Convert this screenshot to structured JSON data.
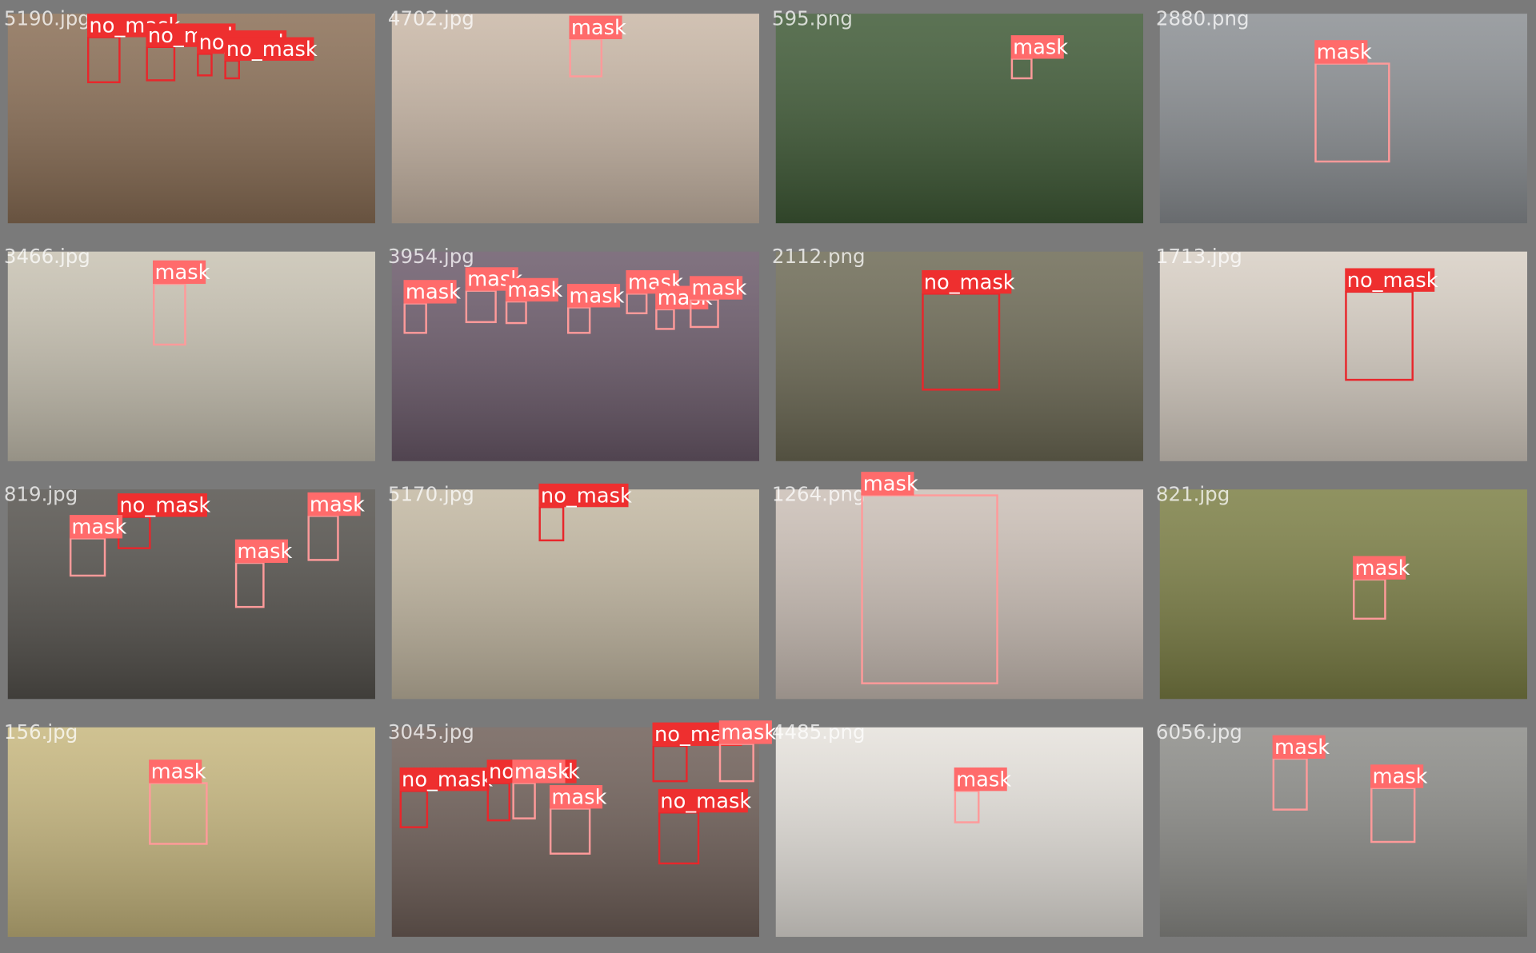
{
  "tiles": [
    {
      "file": "5190.jpg",
      "labels": [
        "no_mask",
        "no_mask",
        "no_mask",
        "no_mask"
      ]
    },
    {
      "file": "4702.jpg",
      "labels": [
        "mask"
      ]
    },
    {
      "file": "595.png",
      "labels": [
        "mask"
      ]
    },
    {
      "file": "2880.png",
      "labels": [
        "mask"
      ]
    },
    {
      "file": "3466.jpg",
      "labels": [
        "mask"
      ]
    },
    {
      "file": "3954.jpg",
      "labels": [
        "mask",
        "mask",
        "mask",
        "mask",
        "mask",
        "mask",
        "mask"
      ]
    },
    {
      "file": "2112.png",
      "labels": [
        "no_mask"
      ]
    },
    {
      "file": "1713.jpg",
      "labels": [
        "no_mask"
      ]
    },
    {
      "file": "819.jpg",
      "labels": [
        "no_mask",
        "mask",
        "mask",
        "mask"
      ]
    },
    {
      "file": "5170.jpg",
      "labels": [
        "no_mask"
      ]
    },
    {
      "file": "1264.png",
      "labels": [
        "mask"
      ]
    },
    {
      "file": "821.jpg",
      "labels": [
        "mask"
      ]
    },
    {
      "file": "156.jpg",
      "labels": [
        "mask"
      ]
    },
    {
      "file": "3045.jpg",
      "labels": [
        "no_mask",
        "mask",
        "no_mask",
        "no_mask",
        "mask",
        "mask",
        "no_mask"
      ]
    },
    {
      "file": "4485.png",
      "labels": [
        "mask"
      ]
    },
    {
      "file": "6056.jpg",
      "labels": [
        "mask",
        "mask"
      ]
    }
  ]
}
